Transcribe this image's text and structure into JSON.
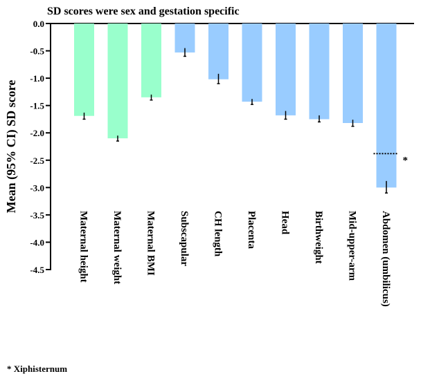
{
  "chart_data": {
    "type": "bar",
    "title": "SD scores were sex and gestation specific",
    "ylabel": "Mean (95% CI) SD score",
    "xlabel": "",
    "ylim": [
      -4.5,
      0
    ],
    "yticks": [
      0,
      -0.5,
      -1,
      -1.5,
      -2,
      -2.5,
      -3,
      -3.5,
      -4,
      -4.5
    ],
    "ytick_labels": [
      "0.0",
      "-0.5",
      "-1.0",
      "-1.5",
      "-2.0",
      "-2.5",
      "-3.0",
      "-3.5",
      "-4.0",
      "-4.5"
    ],
    "categories": [
      "Maternal height",
      "Maternal weight",
      "Maternal BMI",
      "Subscapular",
      "CH length",
      "Placenta",
      "Head",
      "Birthweight",
      "Mid-upper-arm",
      "Abdomen (umbilicus)"
    ],
    "values": [
      -1.69,
      -2.1,
      -1.35,
      -0.53,
      -1.02,
      -1.43,
      -1.68,
      -1.75,
      -1.82,
      -3.0
    ],
    "ci_low": [
      -1.75,
      -2.15,
      -1.4,
      -0.6,
      -1.1,
      -1.48,
      -1.75,
      -1.8,
      -1.88,
      -3.1
    ],
    "ci_high": [
      -1.63,
      -2.05,
      -1.3,
      -0.45,
      -0.92,
      -1.38,
      -1.6,
      -1.68,
      -1.76,
      -2.88
    ],
    "colors": [
      "#99ffcc",
      "#99ffcc",
      "#99ffcc",
      "#99ccff",
      "#99ccff",
      "#99ccff",
      "#99ccff",
      "#99ccff",
      "#99ccff",
      "#99ccff"
    ],
    "annotation": {
      "category": "Abdomen (umbilicus)",
      "value": -2.38,
      "label": "*"
    },
    "grid": false,
    "legend": "none"
  },
  "footnote": "* Xiphisternum"
}
